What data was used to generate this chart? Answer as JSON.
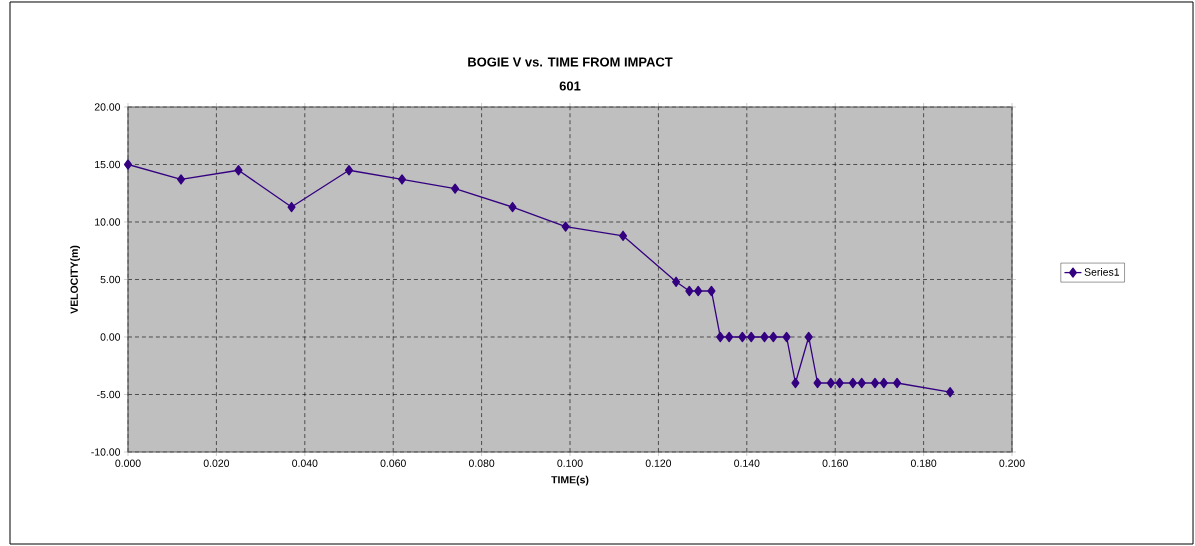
{
  "chart_data": {
    "type": "line",
    "title": "BOGIE V vs. TIME FROM IMPACT",
    "subtitle": "601",
    "xlabel": "TIME(s)",
    "ylabel": "VELOCITY(m)",
    "x": [
      0.0,
      0.012,
      0.025,
      0.037,
      0.05,
      0.062,
      0.074,
      0.087,
      0.099,
      0.112,
      0.124,
      0.127,
      0.129,
      0.132,
      0.134,
      0.136,
      0.139,
      0.141,
      0.144,
      0.146,
      0.149,
      0.151,
      0.154,
      0.156,
      0.159,
      0.161,
      0.164,
      0.166,
      0.169,
      0.171,
      0.174,
      0.186
    ],
    "series": [
      {
        "name": "Series1",
        "color": "#330080",
        "values": [
          15.0,
          13.7,
          14.5,
          11.3,
          14.5,
          13.7,
          12.9,
          11.3,
          9.6,
          8.8,
          4.8,
          4.0,
          4.0,
          4.0,
          0.0,
          0.0,
          0.0,
          0.0,
          0.0,
          0.0,
          0.0,
          -4.0,
          0.0,
          -4.0,
          -4.0,
          -4.0,
          -4.0,
          -4.0,
          -4.0,
          -4.0,
          -4.0,
          -4.8
        ]
      }
    ],
    "xlim": [
      0,
      0.2
    ],
    "ylim": [
      -10,
      20
    ],
    "xticks": [
      {
        "value": 0,
        "label": "0.000"
      },
      {
        "value": 0.02,
        "label": "0.020"
      },
      {
        "value": 0.04,
        "label": "0.040"
      },
      {
        "value": 0.06,
        "label": "0.060"
      },
      {
        "value": 0.08,
        "label": "0.080"
      },
      {
        "value": 0.1,
        "label": "0.100"
      },
      {
        "value": 0.12,
        "label": "0.120"
      },
      {
        "value": 0.14,
        "label": "0.140"
      },
      {
        "value": 0.16,
        "label": "0.160"
      },
      {
        "value": 0.18,
        "label": "0.180"
      },
      {
        "value": 0.2,
        "label": "0.200"
      }
    ],
    "yticks": [
      {
        "value": -10,
        "label": "-10.00"
      },
      {
        "value": -5,
        "label": "-5.00"
      },
      {
        "value": 0,
        "label": "0.00"
      },
      {
        "value": 5,
        "label": "5.00"
      },
      {
        "value": 10,
        "label": "10.00"
      },
      {
        "value": 15,
        "label": "15.00"
      },
      {
        "value": 20,
        "label": "20.00"
      }
    ],
    "grid": true,
    "legend": "right",
    "marker": "diamond",
    "line_style": "solid"
  }
}
